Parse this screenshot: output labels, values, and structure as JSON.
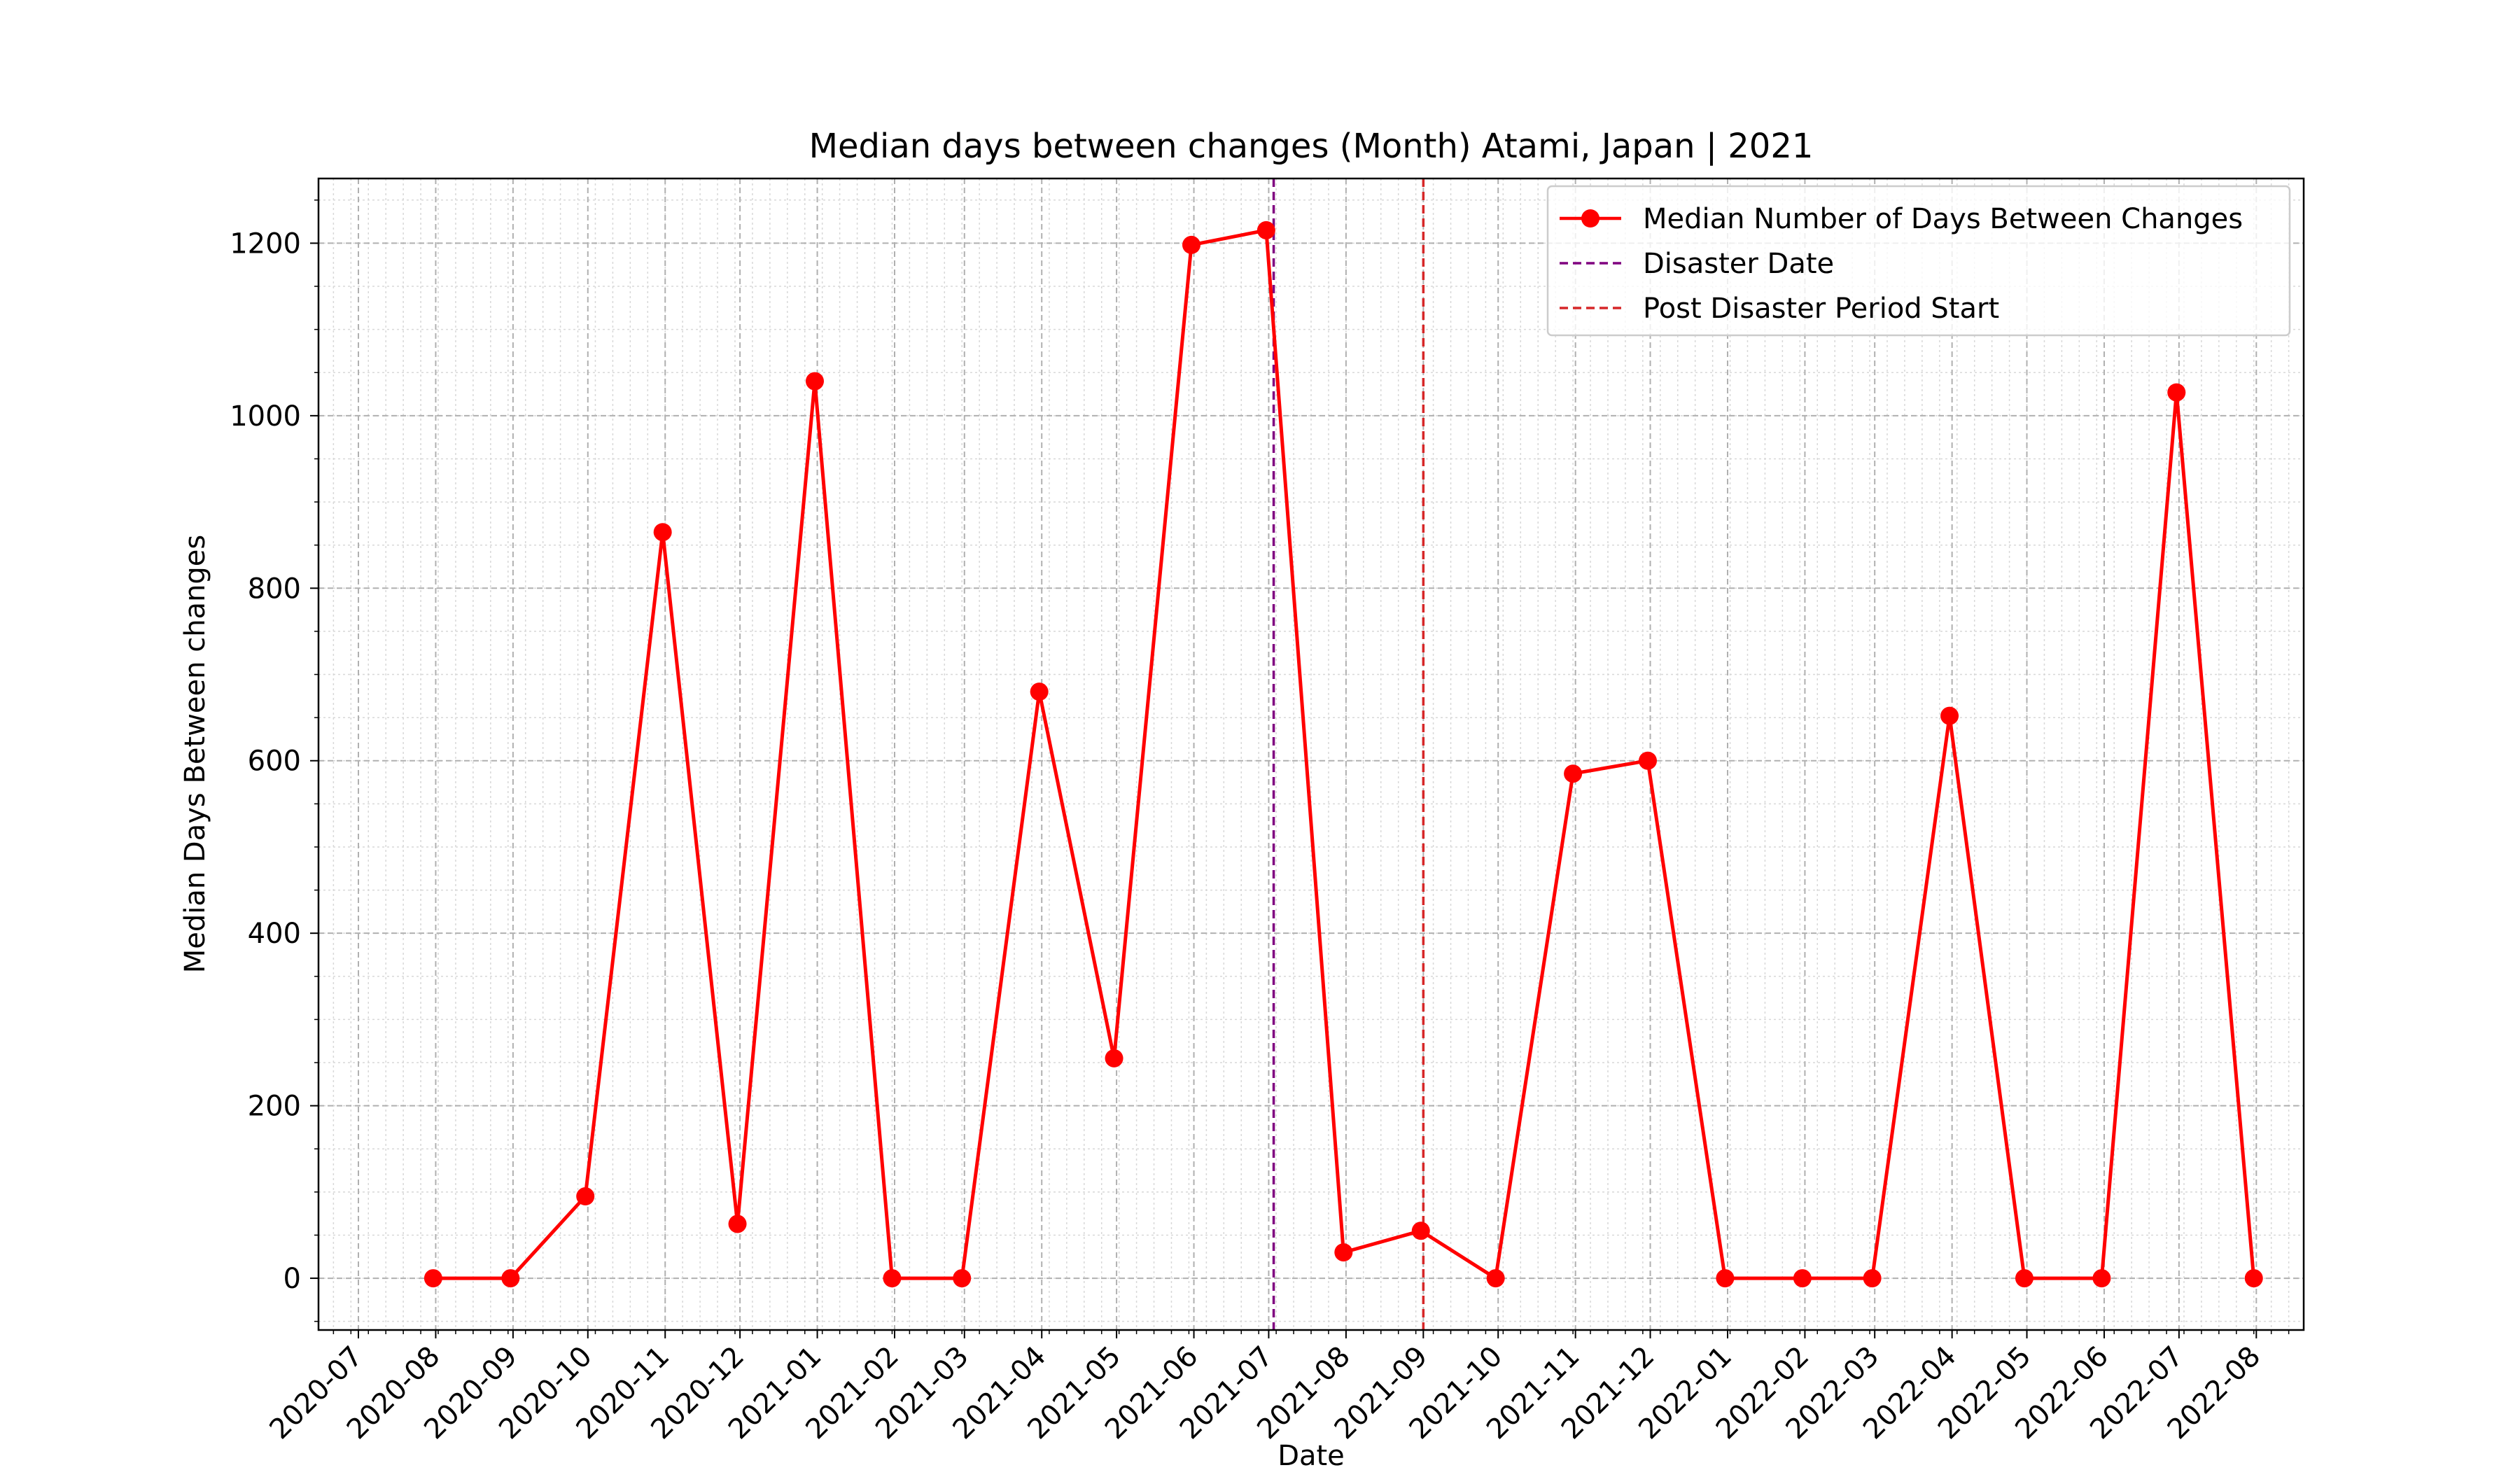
{
  "chart_data": {
    "type": "line",
    "title": "Median days between changes (Month) Atami, Japan | 2021",
    "xlabel": "Date",
    "ylabel": "Median Days Between changes",
    "x_tick_labels": [
      "2020-07",
      "2020-08",
      "2020-09",
      "2020-10",
      "2020-11",
      "2020-12",
      "2021-01",
      "2021-02",
      "2021-03",
      "2021-04",
      "2021-05",
      "2021-06",
      "2021-07",
      "2021-08",
      "2021-09",
      "2021-10",
      "2021-11",
      "2021-12",
      "2022-01",
      "2022-02",
      "2022-03",
      "2022-04",
      "2022-05",
      "2022-06",
      "2022-07",
      "2022-08"
    ],
    "y_ticks": [
      0,
      200,
      400,
      600,
      800,
      1000,
      1200
    ],
    "xlim": [
      "2020-06-15",
      "2022-08-20"
    ],
    "ylim": [
      -60,
      1275
    ],
    "grid": true,
    "legend_position": "top-right",
    "series": [
      {
        "name": "Median Number of Days Between Changes",
        "color": "#ff0000",
        "points": [
          {
            "x": "2020-07-31",
            "y": 0
          },
          {
            "x": "2020-08-31",
            "y": 0
          },
          {
            "x": "2020-09-30",
            "y": 95
          },
          {
            "x": "2020-10-31",
            "y": 865
          },
          {
            "x": "2020-11-30",
            "y": 63
          },
          {
            "x": "2020-12-31",
            "y": 1040
          },
          {
            "x": "2021-01-31",
            "y": 0
          },
          {
            "x": "2021-02-28",
            "y": 0
          },
          {
            "x": "2021-03-31",
            "y": 680
          },
          {
            "x": "2021-04-30",
            "y": 255
          },
          {
            "x": "2021-05-31",
            "y": 1198
          },
          {
            "x": "2021-06-30",
            "y": 1215
          },
          {
            "x": "2021-07-31",
            "y": 30
          },
          {
            "x": "2021-08-31",
            "y": 55
          },
          {
            "x": "2021-09-30",
            "y": 0
          },
          {
            "x": "2021-10-31",
            "y": 585
          },
          {
            "x": "2021-11-30",
            "y": 600
          },
          {
            "x": "2021-12-31",
            "y": 0
          },
          {
            "x": "2022-01-31",
            "y": 0
          },
          {
            "x": "2022-02-28",
            "y": 0
          },
          {
            "x": "2022-03-31",
            "y": 652
          },
          {
            "x": "2022-04-30",
            "y": 0
          },
          {
            "x": "2022-05-31",
            "y": 0
          },
          {
            "x": "2022-06-30",
            "y": 1027
          },
          {
            "x": "2022-07-31",
            "y": 0
          }
        ]
      }
    ],
    "vlines": [
      {
        "name": "Disaster Date",
        "x": "2021-07-03",
        "color": "#800080"
      },
      {
        "name": "Post Disaster Period Start",
        "x": "2021-09-01",
        "color": "#d62728"
      }
    ]
  }
}
